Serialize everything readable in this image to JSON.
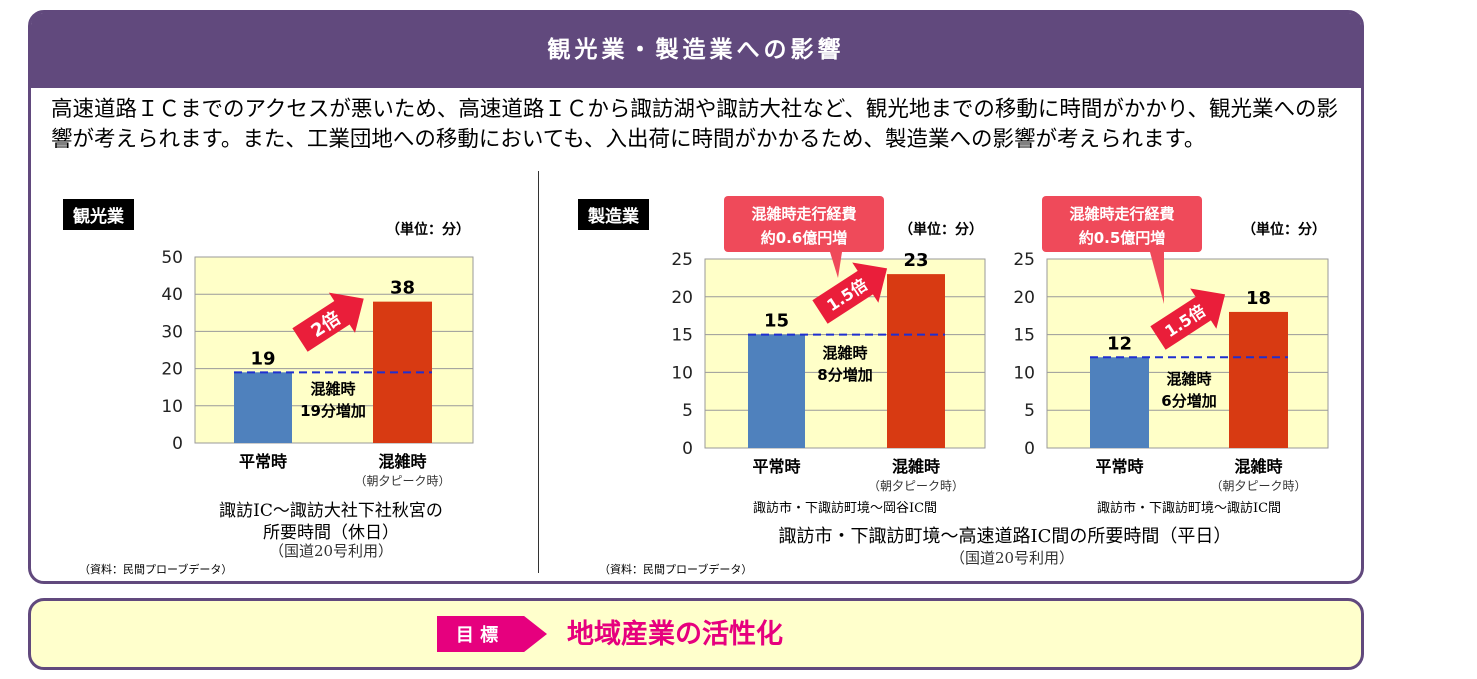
{
  "header": {
    "title": "観光業・製造業への影響"
  },
  "intro": "高速道路ＩＣまでのアクセスが悪いため、高速道路ＩＣから諏訪湖や諏訪大社など、観光地までの移動に時間がかかり、観光業への影響が考えられます。また、工業団地への移動においても、入出荷に時間がかかるため、製造業への影響が考えられます。",
  "left": {
    "tag": "観光業",
    "unit": "（単位：分）",
    "caption_line1": "諏訪IC～諏訪大社下社秋宮の",
    "caption_line2": "所要時間（休日）",
    "caption_line3": "（国道20号利用）",
    "source": "（資料：民間プローブデータ）"
  },
  "right": {
    "tag": "製造業",
    "main_caption": "諏訪市・下諏訪町境～高速道路IC間の所要時間（平日）",
    "sub_caption": "（国道20号利用）",
    "source": "（資料：民間プローブデータ）"
  },
  "chart_data": [
    {
      "type": "bar",
      "categories": [
        "平常時",
        "混雑時"
      ],
      "category_sublabels": [
        "",
        "（朝夕ピーク時）"
      ],
      "values": [
        19,
        38
      ],
      "value_labels": [
        "19",
        "38"
      ],
      "colors": [
        "#4f81bd",
        "#d83a12"
      ],
      "ylim": [
        0,
        50
      ],
      "yticks": [
        "0",
        "10",
        "20",
        "30",
        "40",
        "50"
      ],
      "ratio_label": "2倍",
      "increase_line1": "混雑時",
      "increase_line2": "19分増加",
      "plot_bg": "#ffffc8"
    },
    {
      "type": "bar",
      "categories": [
        "平常時",
        "混雑時"
      ],
      "category_sublabels": [
        "",
        "（朝夕ピーク時）"
      ],
      "values": [
        15,
        23
      ],
      "value_labels": [
        "15",
        "23"
      ],
      "colors": [
        "#4f81bd",
        "#d83a12"
      ],
      "ylim": [
        0,
        25
      ],
      "yticks": [
        "0",
        "5",
        "10",
        "15",
        "20",
        "25"
      ],
      "ratio_label": "1.5倍",
      "increase_line1": "混雑時",
      "increase_line2": "8分増加",
      "cost_line1": "混雑時走行経費",
      "cost_line2": "約0.6億円増",
      "unit": "（単位：分）",
      "caption": "諏訪市・下諏訪町境～岡谷IC間",
      "plot_bg": "#ffffc8"
    },
    {
      "type": "bar",
      "categories": [
        "平常時",
        "混雑時"
      ],
      "category_sublabels": [
        "",
        "（朝夕ピーク時）"
      ],
      "values": [
        12,
        18
      ],
      "value_labels": [
        "12",
        "18"
      ],
      "colors": [
        "#4f81bd",
        "#d83a12"
      ],
      "ylim": [
        0,
        25
      ],
      "yticks": [
        "0",
        "5",
        "10",
        "15",
        "20",
        "25"
      ],
      "ratio_label": "1.5倍",
      "increase_line1": "混雑時",
      "increase_line2": "6分増加",
      "cost_line1": "混雑時走行経費",
      "cost_line2": "約0.5億円増",
      "unit": "（単位：分）",
      "caption": "諏訪市・下諏訪町境～諏訪IC間",
      "plot_bg": "#ffffc8"
    }
  ],
  "goal": {
    "badge": "目 標",
    "text": "地域産業の活性化"
  }
}
